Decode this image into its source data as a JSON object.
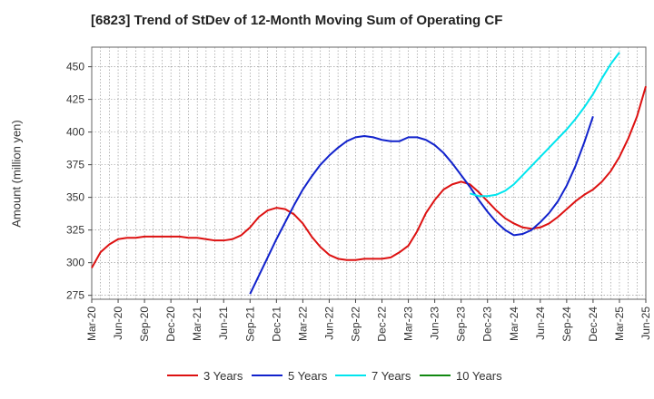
{
  "chart_data": {
    "type": "line",
    "title": "[6823]  Trend of StDev of 12-Month Moving Sum of Operating CF",
    "ylabel": "Amount (million yen)",
    "xlabel": "",
    "ylim": [
      272,
      465
    ],
    "yticks": [
      275,
      300,
      325,
      350,
      375,
      400,
      425,
      450
    ],
    "xticks": [
      "Mar-20",
      "Jun-20",
      "Sep-20",
      "Dec-20",
      "Mar-21",
      "Jun-21",
      "Sep-21",
      "Dec-21",
      "Mar-22",
      "Jun-22",
      "Sep-22",
      "Dec-22",
      "Mar-23",
      "Jun-23",
      "Sep-23",
      "Dec-23",
      "Mar-24",
      "Jun-24",
      "Sep-24",
      "Dec-24",
      "Mar-25",
      "Jun-25"
    ],
    "grid": true,
    "legend_position": "bottom",
    "series": [
      {
        "name": "3 Years",
        "color": "#dd1111",
        "start_index": 0,
        "values": [
          296,
          308,
          314,
          318,
          319,
          319,
          320,
          320,
          320,
          320,
          320,
          319,
          319,
          318,
          317,
          317,
          318,
          321,
          327,
          335,
          340,
          342,
          341,
          337,
          330,
          320,
          312,
          306,
          303,
          302,
          302,
          303,
          303,
          303,
          304,
          308,
          313,
          324,
          338,
          348,
          356,
          360,
          362,
          360,
          354,
          347,
          340,
          334,
          330,
          327,
          326,
          327,
          330,
          335,
          341,
          347,
          352,
          356,
          362,
          370,
          381,
          395,
          412,
          435
        ]
      },
      {
        "name": "5 Years",
        "color": "#1122cc",
        "start_index": 18,
        "values": [
          276,
          290,
          304,
          318,
          331,
          344,
          356,
          366,
          375,
          382,
          388,
          393,
          396,
          397,
          396,
          394,
          393,
          393,
          396,
          396,
          394,
          390,
          384,
          376,
          367,
          358,
          348,
          339,
          331,
          325,
          321,
          322,
          325,
          331,
          338,
          347,
          359,
          374,
          392,
          412
        ]
      },
      {
        "name": "7 Years",
        "color": "#00e5ee",
        "start_index": 43,
        "values": [
          353,
          351,
          351,
          352,
          355,
          360,
          367,
          374,
          381,
          388,
          395,
          402,
          410,
          419,
          429,
          441,
          452,
          461
        ]
      },
      {
        "name": "10 Years",
        "color": "#118811",
        "start_index": 0,
        "values": []
      }
    ]
  }
}
